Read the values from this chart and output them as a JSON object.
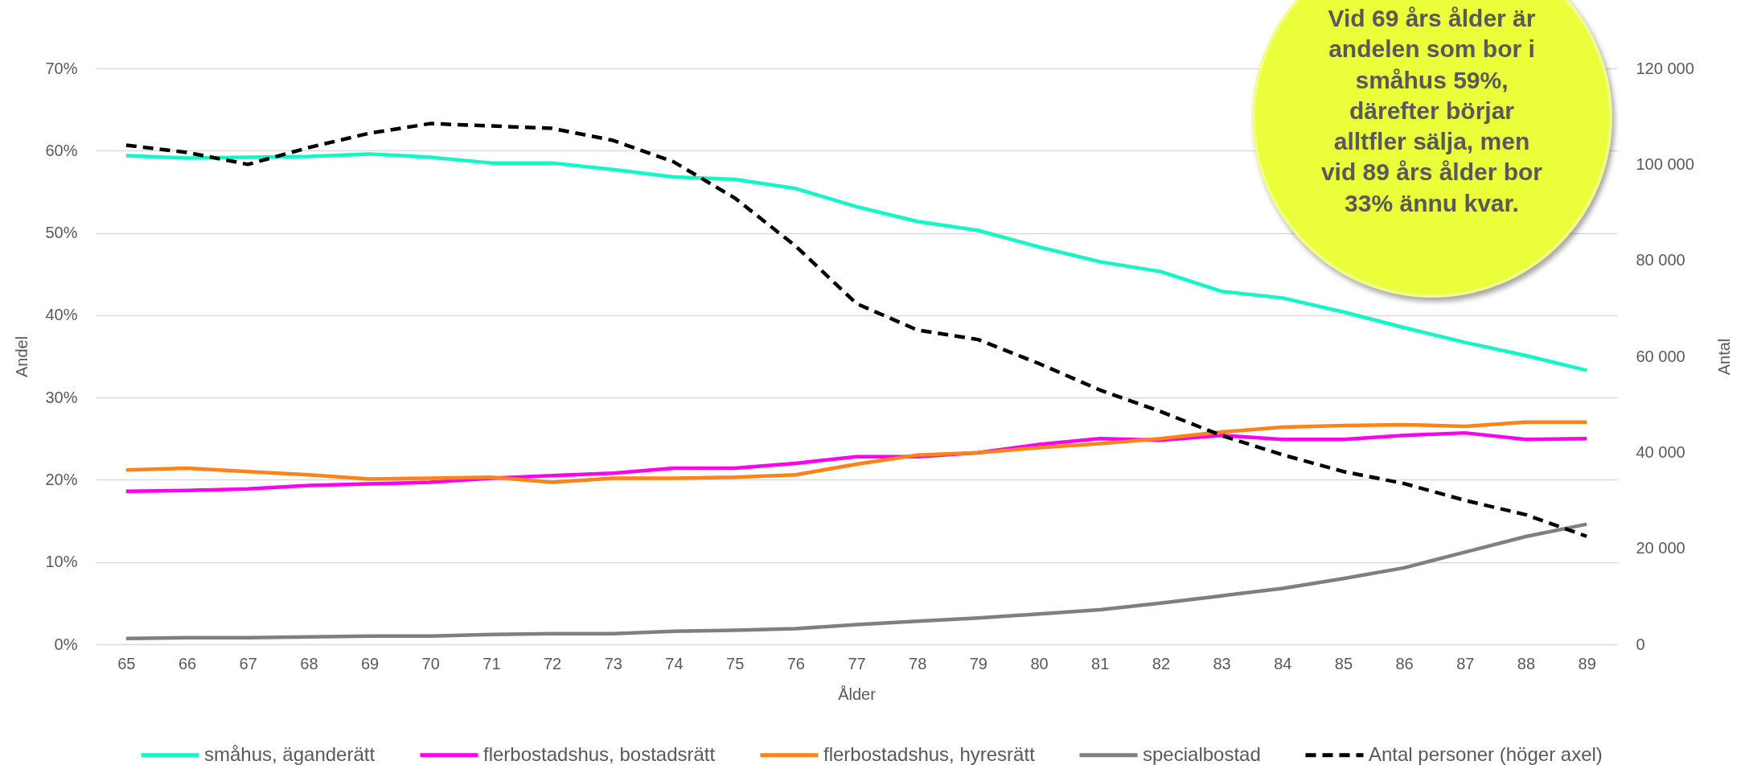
{
  "chart_data": {
    "type": "line",
    "categories": [
      "65",
      "66",
      "67",
      "68",
      "69",
      "70",
      "71",
      "72",
      "73",
      "74",
      "75",
      "76",
      "77",
      "78",
      "79",
      "80",
      "81",
      "82",
      "83",
      "84",
      "85",
      "86",
      "87",
      "88",
      "89"
    ],
    "xlabel": "Ålder",
    "ylabel": "Andel",
    "y2label": "Antal",
    "ylim": [
      0,
      70
    ],
    "yticks": [
      {
        "value": 0,
        "label": "0%"
      },
      {
        "value": 10,
        "label": "10%"
      },
      {
        "value": 20,
        "label": "20%"
      },
      {
        "value": 30,
        "label": "30%"
      },
      {
        "value": 40,
        "label": "40%"
      },
      {
        "value": 50,
        "label": "50%"
      },
      {
        "value": 60,
        "label": "60%"
      },
      {
        "value": 70,
        "label": "70%"
      }
    ],
    "y2lim": [
      0,
      120000
    ],
    "y2ticks": [
      0,
      {
        "value": 20000,
        "label": "20 000"
      },
      {
        "value": 40000,
        "label": "40 000"
      },
      {
        "value": 60000,
        "label": "60 000"
      },
      {
        "value": 80000,
        "label": "80 000"
      },
      {
        "value": 100000,
        "label": "100 000"
      },
      {
        "value": 120000,
        "label": "120 000"
      }
    ],
    "grid": "y",
    "legend": "bottom",
    "line_style": "solid",
    "series": [
      {
        "name": "småhus, äganderätt",
        "color": "#14f7c5",
        "values": [
          59.4,
          59.1,
          59.2,
          59.3,
          59.6,
          59.2,
          58.5,
          58.5,
          57.7,
          56.8,
          56.5,
          55.4,
          53.2,
          51.4,
          50.3,
          48.3,
          46.5,
          45.3,
          42.9,
          42.1,
          40.4,
          38.5,
          36.7,
          35.1,
          33.3
        ]
      },
      {
        "name": "flerbostadshus, bostadsrätt",
        "color": "#ff00ee",
        "values": [
          18.6,
          18.7,
          18.9,
          19.3,
          19.5,
          19.7,
          20.2,
          20.5,
          20.8,
          21.4,
          21.4,
          22.0,
          22.8,
          22.8,
          23.3,
          24.3,
          25.0,
          24.8,
          25.4,
          24.9,
          24.9,
          25.4,
          25.7,
          24.9,
          25.0
        ]
      },
      {
        "name": "flerbostadshus, hyresrätt",
        "color": "#ff8319",
        "values": [
          21.2,
          21.4,
          21.0,
          20.6,
          20.1,
          20.2,
          20.3,
          19.7,
          20.2,
          20.2,
          20.3,
          20.6,
          21.9,
          23.0,
          23.3,
          23.9,
          24.4,
          25.0,
          25.8,
          26.4,
          26.6,
          26.7,
          26.5,
          27.0,
          27.0
        ]
      },
      {
        "name": "specialbostad",
        "color": "#7f7f7f",
        "values": [
          0.7,
          0.8,
          0.8,
          0.9,
          1.0,
          1.0,
          1.2,
          1.3,
          1.3,
          1.6,
          1.7,
          1.9,
          2.4,
          2.8,
          3.2,
          3.7,
          4.2,
          5.0,
          5.9,
          6.8,
          8.0,
          9.3,
          11.2,
          13.1,
          14.6
        ]
      },
      {
        "name": "Antal personer (höger axel)",
        "color": "#000000",
        "axis": "y2",
        "line_style": "dashed",
        "values": [
          104000,
          102500,
          100000,
          103500,
          106500,
          108500,
          108000,
          107500,
          105000,
          100500,
          93000,
          83000,
          71000,
          65500,
          63500,
          58500,
          53000,
          48500,
          43500,
          39500,
          36000,
          33500,
          30000,
          27000,
          22500
        ]
      }
    ],
    "annotations": [
      "Vid 69 års ålder är andelen som bor i småhus 59%, därefter börjar alltfler sälja, men vid 89 års ålder bor 33% ännu kvar."
    ]
  }
}
